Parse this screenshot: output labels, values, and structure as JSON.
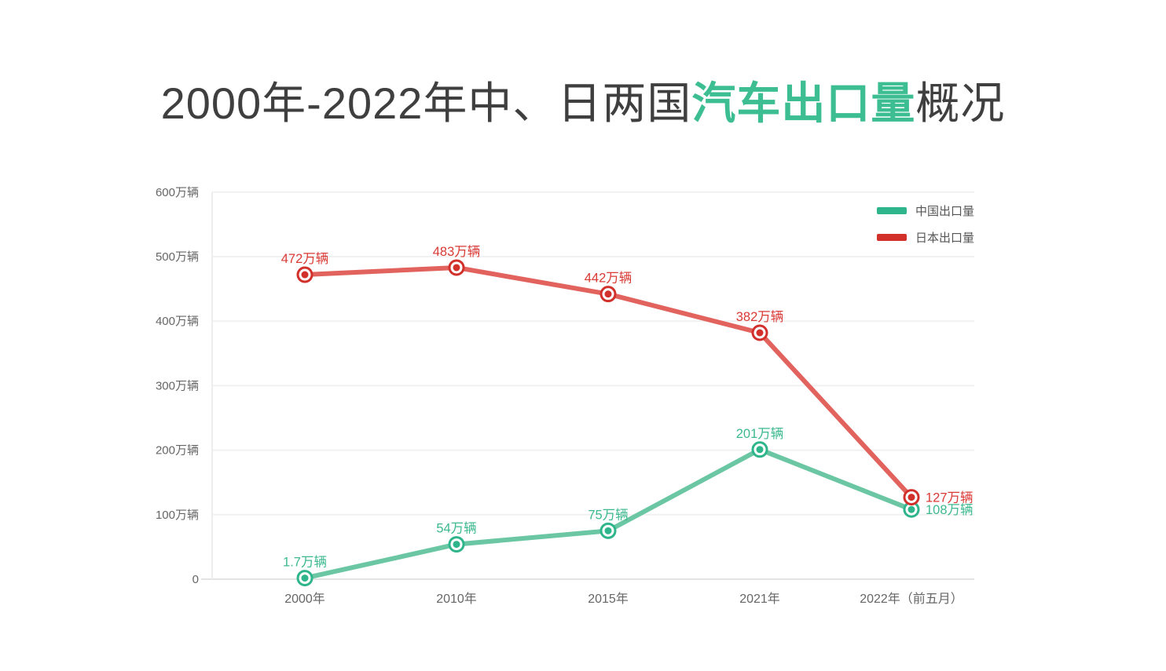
{
  "title": {
    "prefix": "2000年-2022年中、日两国",
    "highlight": "汽车出口量",
    "suffix": "概况"
  },
  "legend": [
    {
      "id": "china",
      "label": "中国出口量",
      "color": "#2FB58B"
    },
    {
      "id": "japan",
      "label": "日本出口量",
      "color": "#D2302B"
    }
  ],
  "colors": {
    "title_text": "#3f3f3f",
    "title_highlight": "#3DBE92",
    "tick_text": "#666666",
    "gridline": "#f1f1f1",
    "baseline": "#e3e3e3",
    "axis_line": "#ededed",
    "background": "#ffffff"
  },
  "chart_data": {
    "type": "line",
    "title": "2000年-2022年中、日两国汽车出口量概况",
    "categories": [
      "2000年",
      "2010年",
      "2015年",
      "2021年",
      "2022年（前五月）"
    ],
    "series": [
      {
        "id": "china",
        "name": "中国出口量",
        "values": [
          1.7,
          54,
          75,
          201,
          108
        ],
        "point_labels": [
          "1.7万辆",
          "54万辆",
          "75万辆",
          "201万辆",
          "108万辆"
        ],
        "label_positions": [
          "top",
          "top",
          "top",
          "top",
          "right"
        ],
        "color_line": "#6BC7A3",
        "color_marker": "#2FB58B",
        "color_label": "#3CB98E"
      },
      {
        "id": "japan",
        "name": "日本出口量",
        "values": [
          472,
          483,
          442,
          382,
          127
        ],
        "point_labels": [
          "472万辆",
          "483万辆",
          "442万辆",
          "382万辆",
          "127万辆"
        ],
        "label_positions": [
          "top",
          "top",
          "top",
          "top",
          "right"
        ],
        "color_line": "#E2635E",
        "color_marker": "#D2302B",
        "color_label": "#DA3A34"
      }
    ],
    "y_ticks": [
      {
        "value": 0,
        "label": "0"
      },
      {
        "value": 100,
        "label": "100万辆"
      },
      {
        "value": 200,
        "label": "200万辆"
      },
      {
        "value": 300,
        "label": "300万辆"
      },
      {
        "value": 400,
        "label": "400万辆"
      },
      {
        "value": 500,
        "label": "500万辆"
      },
      {
        "value": 600,
        "label": "600万辆"
      }
    ],
    "ylim": [
      0,
      600
    ],
    "unit": "万辆",
    "grid": true,
    "legend_position": "top-right"
  }
}
